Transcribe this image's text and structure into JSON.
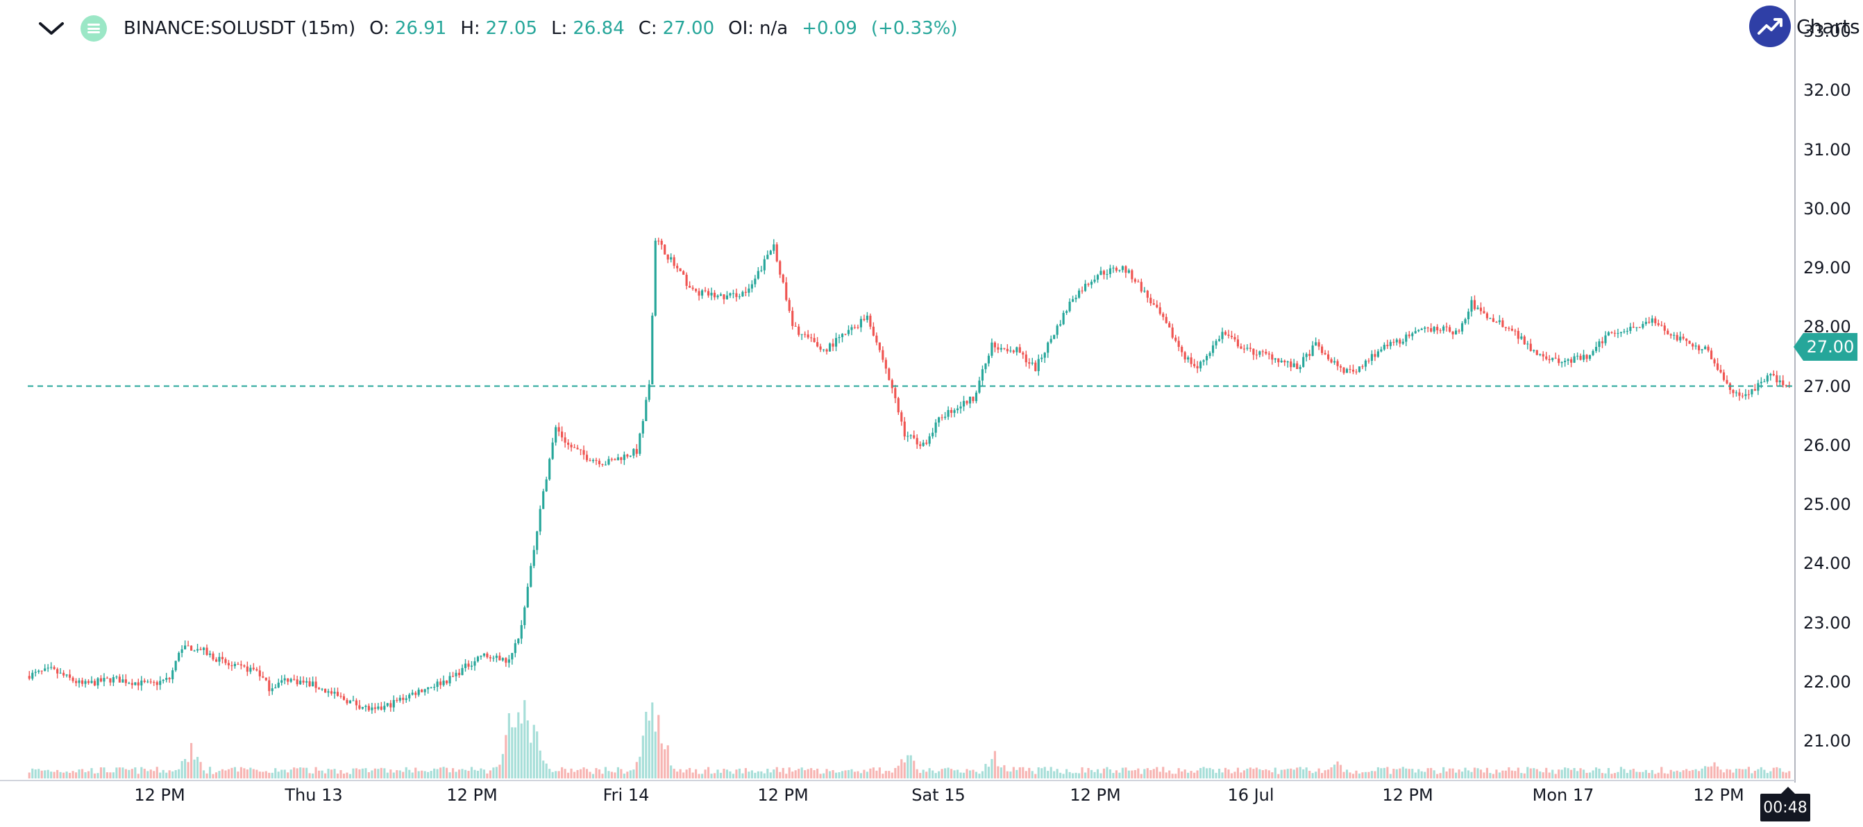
{
  "header": {
    "symbol": "BINANCE:SOLUSDT (15m)",
    "open_label": "O:",
    "open": "26.91",
    "high_label": "H:",
    "high": "27.05",
    "low_label": "L:",
    "low": "26.84",
    "close_label": "C:",
    "close": "27.00",
    "oi_label": "OI:",
    "oi": "n/a",
    "change": "+0.09",
    "change_pct": "(+0.33%)",
    "collapse_icon": "chevron-down-icon",
    "status_icon": "menu-icon"
  },
  "brand": {
    "text": "Charts",
    "icon": "trending-up-icon"
  },
  "colors": {
    "up": "#26a69a",
    "down": "#ef5350",
    "up_volume": "#a6ded8",
    "down_volume": "#f7b4b2",
    "price_line": "#26a69a",
    "brand": "#2f3fa6"
  },
  "last_price": "27.00",
  "countdown": "00:48",
  "chart_data": {
    "type": "candlestick",
    "title": "",
    "y_ticks": [
      "33.00",
      "32.00",
      "31.00",
      "30.00",
      "29.00",
      "28.00",
      "27.00",
      "26.00",
      "25.00",
      "24.00",
      "23.00",
      "22.00",
      "21.00"
    ],
    "x_ticks": [
      "12 PM",
      "Thu 13",
      "12 PM",
      "Fri 14",
      "12 PM",
      "Sat 15",
      "12 PM",
      "16 Jul",
      "12 PM",
      "Mon 17",
      "12 PM"
    ],
    "ylim": [
      20.5,
      33.3
    ],
    "last_price_line": 27.0,
    "price_path": [
      [
        0,
        22.1
      ],
      [
        8,
        22.2
      ],
      [
        18,
        21.95
      ],
      [
        28,
        22.05
      ],
      [
        40,
        21.95
      ],
      [
        46,
        22.05
      ],
      [
        50,
        22.6
      ],
      [
        56,
        22.55
      ],
      [
        66,
        22.25
      ],
      [
        74,
        22.2
      ],
      [
        78,
        21.9
      ],
      [
        84,
        22.05
      ],
      [
        92,
        21.95
      ],
      [
        100,
        21.75
      ],
      [
        112,
        21.5
      ],
      [
        116,
        21.6
      ],
      [
        126,
        21.85
      ],
      [
        136,
        22.05
      ],
      [
        146,
        22.45
      ],
      [
        154,
        22.35
      ],
      [
        158,
        22.7
      ],
      [
        162,
        23.9
      ],
      [
        166,
        25.2
      ],
      [
        170,
        26.3
      ],
      [
        174,
        26.0
      ],
      [
        180,
        25.8
      ],
      [
        186,
        25.7
      ],
      [
        196,
        25.9
      ],
      [
        200,
        27.0
      ],
      [
        202,
        29.5
      ],
      [
        206,
        29.2
      ],
      [
        214,
        28.6
      ],
      [
        224,
        28.5
      ],
      [
        232,
        28.6
      ],
      [
        240,
        29.4
      ],
      [
        246,
        28.0
      ],
      [
        256,
        27.6
      ],
      [
        266,
        28.0
      ],
      [
        270,
        28.2
      ],
      [
        276,
        27.3
      ],
      [
        282,
        26.2
      ],
      [
        288,
        26.0
      ],
      [
        294,
        26.5
      ],
      [
        304,
        26.8
      ],
      [
        310,
        27.7
      ],
      [
        318,
        27.6
      ],
      [
        324,
        27.3
      ],
      [
        330,
        27.9
      ],
      [
        336,
        28.5
      ],
      [
        344,
        28.9
      ],
      [
        352,
        29.0
      ],
      [
        356,
        28.8
      ],
      [
        364,
        28.2
      ],
      [
        372,
        27.5
      ],
      [
        376,
        27.3
      ],
      [
        384,
        27.9
      ],
      [
        392,
        27.6
      ],
      [
        400,
        27.5
      ],
      [
        408,
        27.3
      ],
      [
        414,
        27.7
      ],
      [
        422,
        27.3
      ],
      [
        426,
        27.2
      ],
      [
        434,
        27.6
      ],
      [
        442,
        27.8
      ],
      [
        452,
        28.0
      ],
      [
        460,
        27.9
      ],
      [
        464,
        28.4
      ],
      [
        468,
        28.2
      ],
      [
        476,
        28.0
      ],
      [
        484,
        27.6
      ],
      [
        492,
        27.4
      ],
      [
        502,
        27.5
      ],
      [
        508,
        27.9
      ],
      [
        516,
        28.0
      ],
      [
        522,
        28.1
      ],
      [
        530,
        27.8
      ],
      [
        540,
        27.6
      ],
      [
        546,
        27.0
      ],
      [
        550,
        26.8
      ],
      [
        556,
        27.0
      ],
      [
        560,
        27.2
      ],
      [
        565,
        27.0
      ]
    ],
    "volume_peaks": [
      [
        52,
        0.25
      ],
      [
        155,
        0.55
      ],
      [
        158,
        0.65
      ],
      [
        162,
        0.45
      ],
      [
        200,
        0.7
      ],
      [
        202,
        0.5
      ],
      [
        282,
        0.2
      ],
      [
        310,
        0.2
      ],
      [
        420,
        0.12
      ],
      [
        540,
        0.15
      ]
    ]
  }
}
